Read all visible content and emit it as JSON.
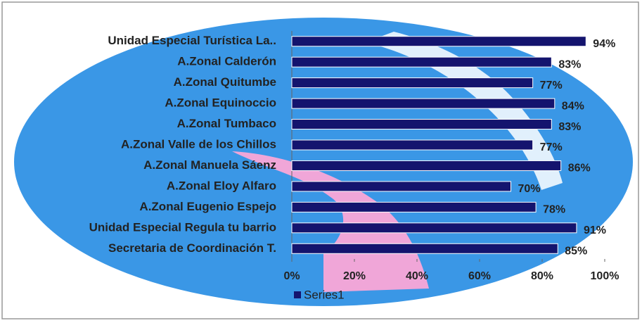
{
  "chart_data": {
    "type": "bar",
    "orientation": "horizontal",
    "categories": [
      "Unidad Especial Turística La..",
      "A.Zonal Calderón",
      "A.Zonal Quitumbe",
      "A.Zonal Equinoccio",
      "A.Zonal Tumbaco",
      "A.Zonal Valle de los Chillos",
      "A.Zonal Manuela Sáenz",
      "A.Zonal Eloy Alfaro",
      "A.Zonal Eugenio Espejo",
      "Unidad Especial Regula tu barrio",
      "Secretaria de Coordinación T."
    ],
    "series": [
      {
        "name": "Series1",
        "color": "#14146e",
        "values": [
          94,
          83,
          77,
          84,
          83,
          77,
          86,
          70,
          78,
          91,
          85
        ],
        "value_labels": [
          "94%",
          "83%",
          "77%",
          "84%",
          "83%",
          "77%",
          "86%",
          "70%",
          "78%",
          "91%",
          "85%"
        ]
      }
    ],
    "xlim": [
      0,
      100
    ],
    "xticks": [
      {
        "value": 0,
        "label": "0%"
      },
      {
        "value": 20,
        "label": "20%"
      },
      {
        "value": 40,
        "label": "40%"
      },
      {
        "value": 60,
        "label": "60%"
      },
      {
        "value": 80,
        "label": "80%"
      },
      {
        "value": 100,
        "label": "100%"
      }
    ],
    "legend": "bottom"
  }
}
